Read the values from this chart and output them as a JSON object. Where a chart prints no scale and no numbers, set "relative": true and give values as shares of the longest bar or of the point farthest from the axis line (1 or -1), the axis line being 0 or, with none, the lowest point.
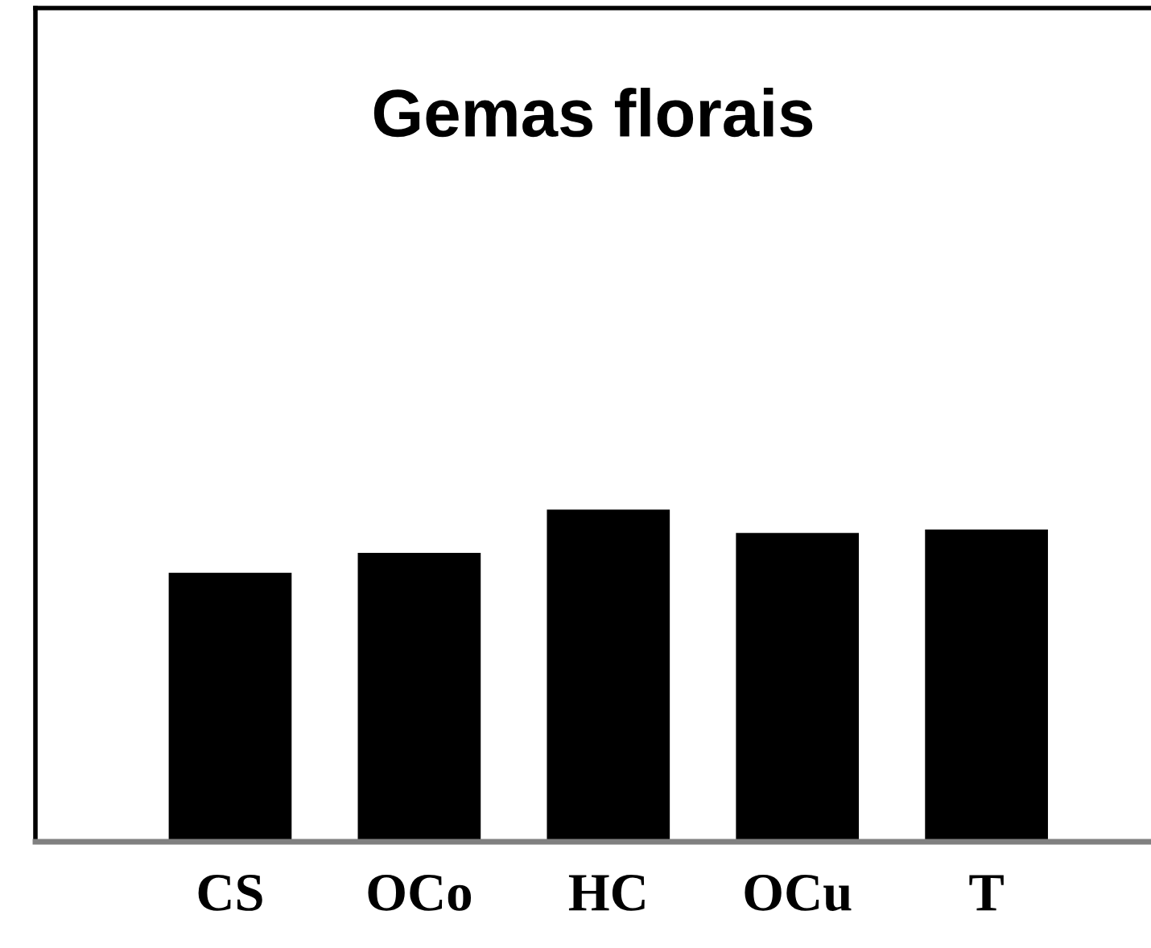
{
  "chart_data": {
    "type": "bar",
    "title": "Gemas florais",
    "categories": [
      "CS",
      "OCo",
      "HC",
      "OCu",
      "T"
    ],
    "values": [
      0.81,
      0.87,
      1,
      0.93,
      0.94
    ],
    "color": "#000000",
    "relative": true,
    "grid": false,
    "legend": false
  }
}
